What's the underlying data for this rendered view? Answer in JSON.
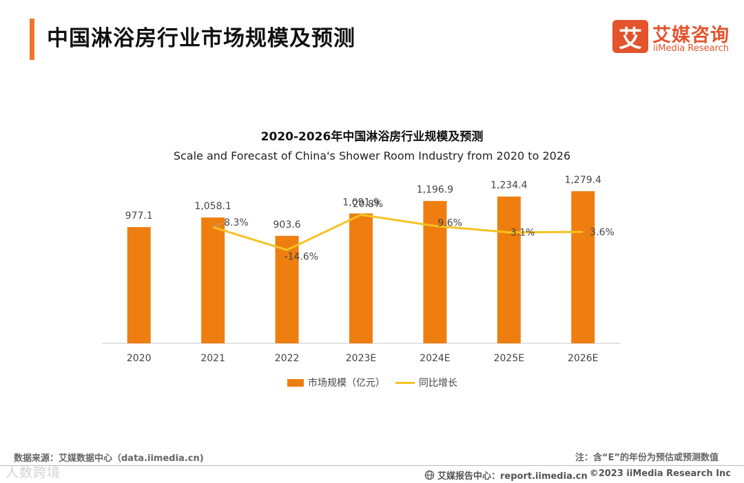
{
  "header": {
    "title": "中国淋浴房行业市场规模及预测",
    "accent_color": "#f0742a"
  },
  "brand": {
    "logo_glyph": "艾",
    "name_cn": "艾媒咨询",
    "name_en": "iiMedia Research",
    "color": "#e3532c"
  },
  "chart_data": {
    "type": "bar",
    "title": "2020-2026年中国淋浴房行业规模及预测",
    "subtitle": "Scale and Forecast of China's Shower Room Industry from 2020 to 2026",
    "categories": [
      "2020",
      "2021",
      "2022",
      "2023E",
      "2024E",
      "2025E",
      "2026E"
    ],
    "series": [
      {
        "name": "市场规模（亿元）",
        "type": "bar",
        "color": "#ef7e10",
        "values": [
          977.1,
          1058.1,
          903.6,
          1091.9,
          1196.9,
          1234.4,
          1279.4
        ],
        "labels": [
          "977.1",
          "1,058.1",
          "903.6",
          "1,091.9",
          "1,196.9",
          "1,234.4",
          "1,279.4"
        ]
      },
      {
        "name": "同比增长",
        "type": "line",
        "color": "#f4c221",
        "values": [
          null,
          8.3,
          -14.6,
          20.8,
          9.6,
          3.1,
          3.6
        ],
        "labels": [
          "",
          "8.3%",
          "-14.6%",
          "20.8%",
          "9.6%",
          "3.1%",
          "3.6%"
        ]
      }
    ],
    "ylim": [
      0,
      1400
    ],
    "growth_ylim": [
      -40,
      50
    ],
    "xlabel": "",
    "ylabel": "",
    "legend": "bottom-center"
  },
  "footer": {
    "source": "数据来源：艾媒数据中心（data.iimedia.cn)",
    "note": "注：含“E”的年份为预估或预测数值",
    "report_center": "艾媒报告中心：report.iimedia.cn",
    "copyright": "©2023  iiMedia Research  Inc",
    "watermark": "人数跨境",
    "globe_icon": "globe-icon"
  }
}
